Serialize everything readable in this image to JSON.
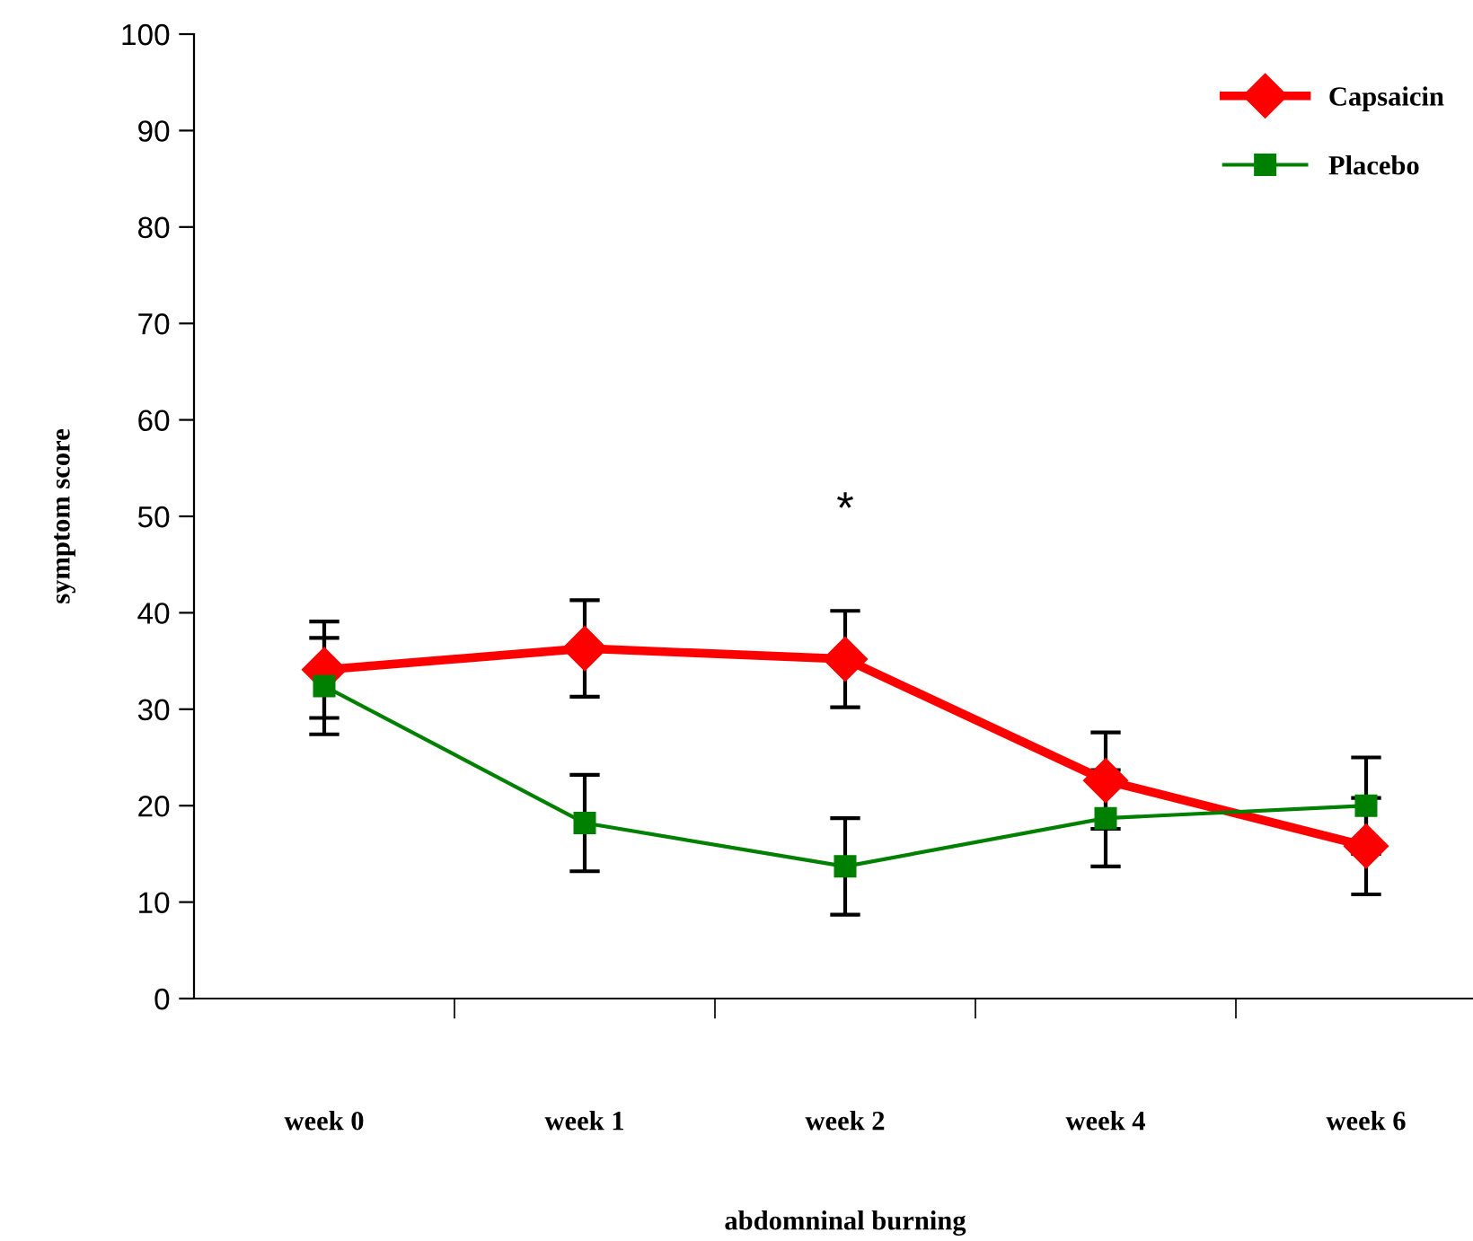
{
  "chart_data": {
    "type": "line",
    "xlabel": "abdomninal burning",
    "ylabel": "symptom score",
    "categories": [
      "week 0",
      "week 1",
      "week 2",
      "week 4",
      "week 6"
    ],
    "series": [
      {
        "name": "Capsaicin",
        "color": "#ff0000",
        "marker": "diamond",
        "values": [
          34.1,
          36.3,
          35.2,
          22.6,
          15.8
        ],
        "errors": [
          5,
          5,
          5,
          5,
          5
        ]
      },
      {
        "name": "Placebo",
        "color": "#008000",
        "marker": "square",
        "values": [
          32.4,
          18.2,
          13.7,
          18.7,
          20.0
        ],
        "errors": [
          5,
          5,
          5,
          5,
          5
        ]
      }
    ],
    "ylim": [
      0,
      100
    ],
    "yticks": [
      0,
      10,
      20,
      30,
      40,
      50,
      60,
      70,
      80,
      90,
      100
    ],
    "annotations": [
      "*"
    ],
    "legend": "top right",
    "grid": false
  }
}
